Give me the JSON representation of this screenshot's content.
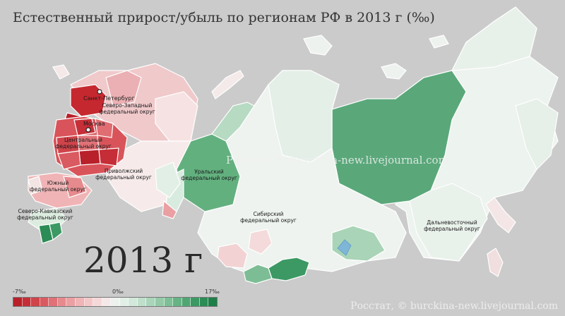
{
  "title": "Естественный прирост/убыль по регионам РФ в 2013 г (‰)",
  "year_label": "2013 г",
  "watermark": "Росстат, © burckina-new.livejournal.com",
  "legend": {
    "min_label": "-7‰",
    "mid_label": "0‰",
    "max_label": "17‰",
    "min_value": -7,
    "mid_value": 0,
    "max_value": 17,
    "colors": [
      "#b8202a",
      "#c52e37",
      "#cf434a",
      "#d95a60",
      "#e07277",
      "#e68a8e",
      "#ec9fa2",
      "#f0b4b6",
      "#f3c7c8",
      "#f5d9d9",
      "#f4e8e8",
      "#eef2ef",
      "#e2efe6",
      "#d2e8da",
      "#bfdfcb",
      "#aad5ba",
      "#94caa8",
      "#7dbf96",
      "#66b384",
      "#50a673",
      "#3c9963",
      "#2b8c55",
      "#1e7f49"
    ]
  },
  "cities": [
    {
      "name": "Санкт-Петербург"
    },
    {
      "name": "Москва"
    }
  ],
  "districts": [
    {
      "name": "Северо-Западный федеральный округ",
      "line1": "Северо-Западный",
      "line2": "федеральный округ"
    },
    {
      "name": "Центральный федеральный округ",
      "line1": "Центральный",
      "line2": "федеральный округ"
    },
    {
      "name": "Приволжский федеральный округ",
      "line1": "Приволжский",
      "line2": "федеральный округ"
    },
    {
      "name": "Южный федеральный округ",
      "line1": "Южный",
      "line2": "федеральный округ"
    },
    {
      "name": "Северо-Кавказский федеральный округ",
      "line1": "Северо-Кавказский",
      "line2": "федеральный округ"
    },
    {
      "name": "Уральский федеральный округ",
      "line1": "Уральский",
      "line2": "федеральный округ"
    },
    {
      "name": "Сибирский федеральный округ",
      "line1": "Сибирский",
      "line2": "федеральный округ"
    },
    {
      "name": "Дальневосточный федеральный округ",
      "line1": "Дальневосточный",
      "line2": "федеральный округ"
    }
  ],
  "colors": {
    "background": "#cbcbcb",
    "border": "#ffffff",
    "strong_loss": "#c62830",
    "strong_growth": "#2e8b57"
  }
}
